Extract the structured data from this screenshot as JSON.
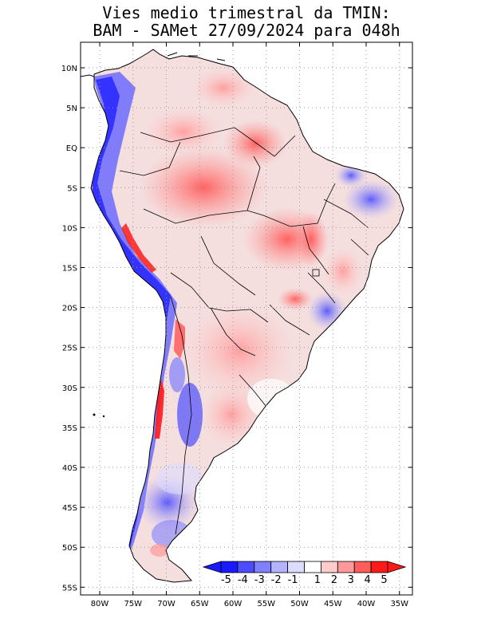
{
  "title": {
    "line1": "Vies medio trimestral da TMIN:",
    "line2": "BAM - SAMet 27/09/2024  para 048h"
  },
  "axes": {
    "lon_labels": [
      "80W",
      "75W",
      "70W",
      "65W",
      "60W",
      "55W",
      "50W",
      "45W",
      "40W",
      "35W"
    ],
    "lat_labels": [
      "10N",
      "5N",
      "EQ",
      "5S",
      "10S",
      "15S",
      "20S",
      "25S",
      "30S",
      "35S",
      "40S",
      "45S",
      "50S",
      "55S"
    ]
  },
  "colorbar": {
    "labels": [
      "-5",
      "-4",
      "-3",
      "-2",
      "-1",
      "1",
      "2",
      "3",
      "4",
      "5"
    ],
    "colors": [
      "#1a1aff",
      "#4d4dff",
      "#8080ff",
      "#b3b3ff",
      "#dcdcff",
      "#ffffff",
      "#ffcccc",
      "#ff9999",
      "#ff5c5c",
      "#ff1a1a"
    ]
  },
  "map": {
    "land_color": "#f2dede",
    "ocean_color": "#ffffff",
    "grid_style": "dotted"
  }
}
